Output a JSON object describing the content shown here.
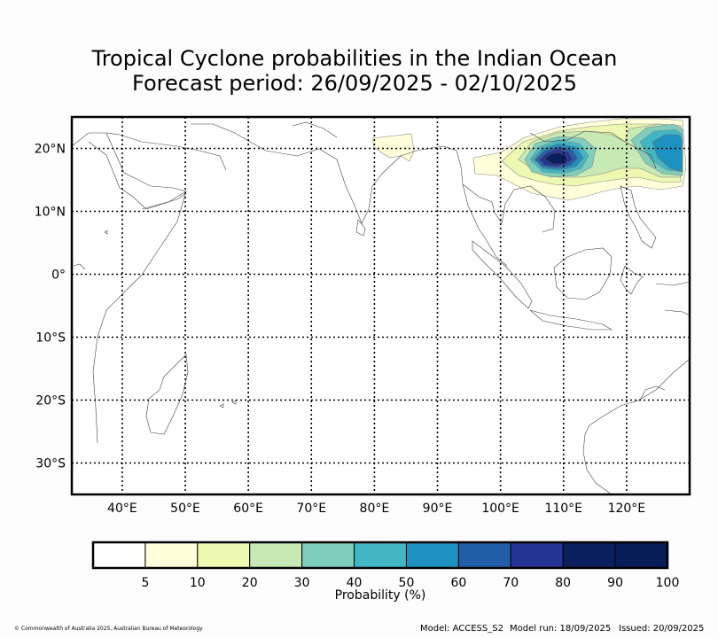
{
  "title_line1": "Tropical Cyclone probabilities in the Indian Ocean",
  "title_line2": "Forecast period: 26/09/2025 - 02/10/2025",
  "map": {
    "lon_range": [
      32,
      130
    ],
    "lat_range": [
      -35,
      25
    ],
    "lon_ticks": [
      {
        "value": 40,
        "label": "40°E"
      },
      {
        "value": 50,
        "label": "50°E"
      },
      {
        "value": 60,
        "label": "60°E"
      },
      {
        "value": 70,
        "label": "70°E"
      },
      {
        "value": 80,
        "label": "80°E"
      },
      {
        "value": 90,
        "label": "90°E"
      },
      {
        "value": 100,
        "label": "100°E"
      },
      {
        "value": 110,
        "label": "110°E"
      },
      {
        "value": 120,
        "label": "120°E"
      }
    ],
    "lat_ticks": [
      {
        "value": 20,
        "label": "20°N"
      },
      {
        "value": 10,
        "label": "10°N"
      },
      {
        "value": 0,
        "label": "0°"
      },
      {
        "value": -10,
        "label": "10°S"
      },
      {
        "value": -20,
        "label": "20°S"
      },
      {
        "value": -30,
        "label": "30°S"
      }
    ],
    "grid_lines": "dotted"
  },
  "colorbar": {
    "label": "Probability (%)",
    "ticks": [
      "5",
      "10",
      "20",
      "30",
      "40",
      "50",
      "60",
      "70",
      "80",
      "90",
      "100"
    ],
    "colors": [
      "#ffffff",
      "#ffffd9",
      "#edf8b1",
      "#c7e9b4",
      "#7fcdbb",
      "#41b6c4",
      "#1d91c0",
      "#225ea8",
      "#253494",
      "#0b1f5e",
      "#081d58"
    ]
  },
  "footer": {
    "copyright": "© Commonwealth of Australia 2025, Australian Bureau of Meteorology",
    "model": "Model: ACCESS_S2",
    "model_run": "Model run: 18/09/2025",
    "issued": "Issued: 20/09/2025"
  }
}
